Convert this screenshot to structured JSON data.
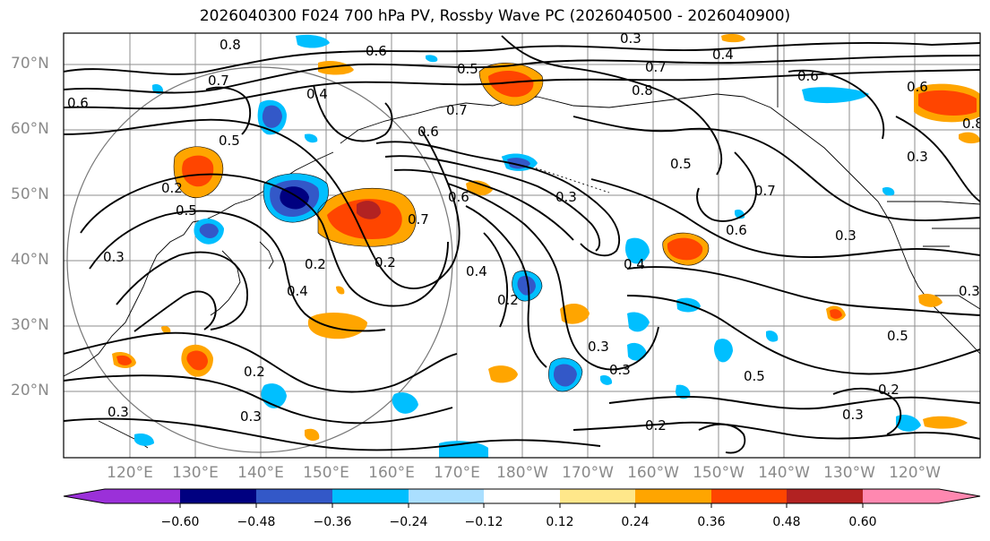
{
  "title": "2026040300 F024 700 hPa PV, Rossby Wave PC (2026040500 - 2026040900)",
  "lat_labels": [
    "70°N",
    "60°N",
    "50°N",
    "40°N",
    "30°N",
    "20°N"
  ],
  "lon_labels": [
    "120°E",
    "130°E",
    "140°E",
    "150°E",
    "160°E",
    "170°E",
    "180°W",
    "170°W",
    "160°W",
    "150°W",
    "140°W",
    "130°W",
    "120°W"
  ],
  "colorbar": {
    "ticks": [
      "−0.60",
      "−0.48",
      "−0.36",
      "−0.24",
      "−0.12",
      "0.12",
      "0.24",
      "0.36",
      "0.48",
      "0.60"
    ],
    "colors": [
      "#9b30d9",
      "#000080",
      "#3358c8",
      "#00bfff",
      "#aadfff",
      "#ffffff",
      "#ffe78a",
      "#ffa500",
      "#ff4500",
      "#b22222",
      "#ff88b0"
    ]
  },
  "contour_labels": [
    "0.8",
    "0.6",
    "0.3",
    "0.4",
    "0.5",
    "0.7",
    "0.6",
    "0.6",
    "0.7",
    "0.8",
    "0.4",
    "0.5",
    "0.3",
    "0.7",
    "0.8",
    "0.6",
    "0.5",
    "0.7",
    "0.2",
    "0.3",
    "0.5",
    "0.6",
    "0.4",
    "0.2",
    "0.3",
    "0.2",
    "0.2",
    "0.3",
    "0.5",
    "0.3",
    "0.3",
    "0.2",
    "0.3",
    "0.7",
    "0.6",
    "0.4",
    "0.3",
    "0.2",
    "0.4",
    "0.3",
    "0.5",
    "0.3",
    "0.6"
  ],
  "colors": {
    "pos_dark": "#b22222",
    "pos_red": "#ff4500",
    "pos_orange": "#ffa500",
    "pos_yellow": "#ffe78a",
    "neg_light": "#aadfff",
    "neg_cyan": "#00bfff",
    "neg_blue": "#3358c8",
    "neg_navy": "#000080",
    "grid": "#8c8c8c",
    "contour": "#000000"
  }
}
